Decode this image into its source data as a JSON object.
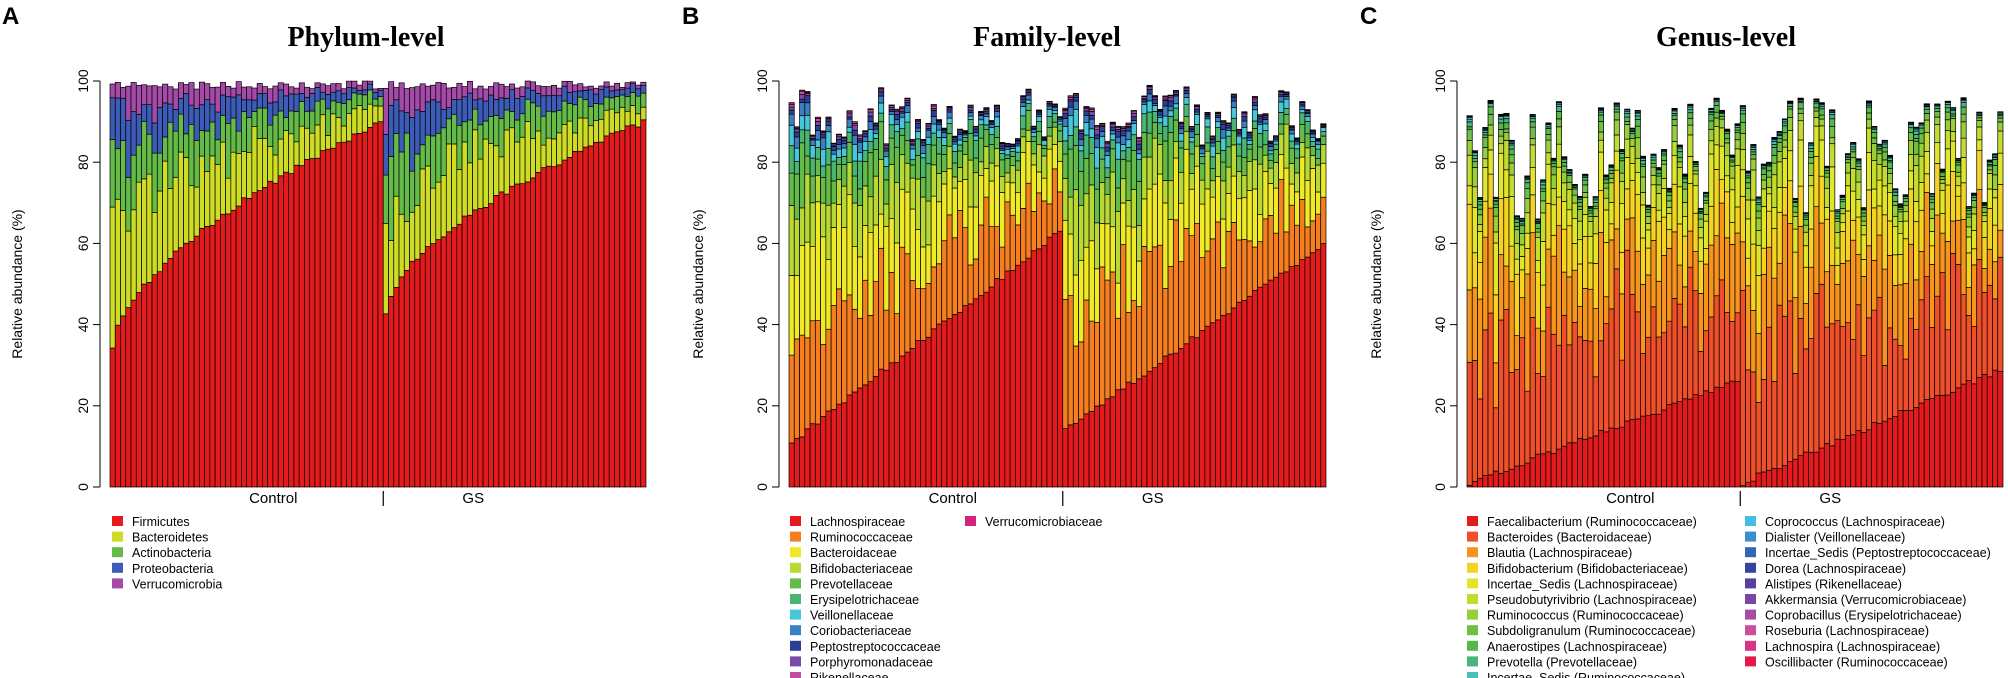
{
  "chart_data": [
    {
      "panel_letter": "A",
      "type": "bar",
      "stacked": true,
      "title": "Phylum-level",
      "ylabel": "Relative abundance (%)",
      "xlabel": "",
      "ylim": [
        0,
        100
      ],
      "yticks": [
        0,
        20,
        40,
        60,
        80,
        100
      ],
      "groups": [
        {
          "name": "Control",
          "n": 52
        },
        {
          "name": "GS",
          "n": 50
        }
      ],
      "bottom_series": {
        "name": "Firmicutes",
        "control_range": [
          34,
          90
        ],
        "gs_range": [
          43,
          90
        ]
      },
      "bar_total_range": [
        98,
        100
      ],
      "legend": {
        "placement": "bottom-left",
        "columns": 1,
        "items": [
          {
            "name": "Firmicutes",
            "color": "#e41a1c"
          },
          {
            "name": "Bacteroidetes",
            "color": "#cfdc25"
          },
          {
            "name": "Actinobacteria",
            "color": "#64bb47"
          },
          {
            "name": "Proteobacteria",
            "color": "#3d5cb8"
          },
          {
            "name": "Verrucomicrobia",
            "color": "#a54aa8"
          }
        ]
      }
    },
    {
      "panel_letter": "B",
      "type": "bar",
      "stacked": true,
      "title": "Family-level",
      "ylabel": "Relative abundance (%)",
      "xlabel": "",
      "ylim": [
        0,
        100
      ],
      "yticks": [
        0,
        20,
        40,
        60,
        80,
        100
      ],
      "groups": [
        {
          "name": "Control",
          "n": 52
        },
        {
          "name": "GS",
          "n": 50
        }
      ],
      "bottom_series": {
        "name": "Lachnospiraceae",
        "control_range": [
          11,
          63
        ],
        "gs_range": [
          14,
          60
        ]
      },
      "bar_total_range": [
        84,
        99
      ],
      "legend": {
        "placement": "bottom-left",
        "columns": 2,
        "items": [
          {
            "name": "Lachnospiraceae",
            "color": "#e41a1c"
          },
          {
            "name": "Ruminococcaceae",
            "color": "#f57f20"
          },
          {
            "name": "Bacteroidaceae",
            "color": "#f0e926"
          },
          {
            "name": "Bifidobacteriaceae",
            "color": "#b8d935"
          },
          {
            "name": "Prevotellaceae",
            "color": "#64bb47"
          },
          {
            "name": "Erysipelotrichaceae",
            "color": "#49b56e"
          },
          {
            "name": "Veillonellaceae",
            "color": "#47c7d8"
          },
          {
            "name": "Coriobacteriaceae",
            "color": "#3b7ec2"
          },
          {
            "name": "Peptostreptococcaceae",
            "color": "#2b3f99"
          },
          {
            "name": "Porphyromonadaceae",
            "color": "#7b4aa8"
          },
          {
            "name": "Rikenellaceae",
            "color": "#c14fa0"
          },
          {
            "name": "Verrucomicrobiaceae",
            "color": "#d4237a"
          }
        ]
      }
    },
    {
      "panel_letter": "C",
      "type": "bar",
      "stacked": true,
      "title": "Genus-level",
      "ylabel": "Relative abundance (%)",
      "xlabel": "",
      "ylim": [
        0,
        100
      ],
      "yticks": [
        0,
        20,
        40,
        60,
        80,
        100
      ],
      "groups": [
        {
          "name": "Control",
          "n": 52
        },
        {
          "name": "GS",
          "n": 50
        }
      ],
      "bottom_series": {
        "name": "Faecalibacterium (Ruminococcaceae)",
        "control_range": [
          1,
          26
        ],
        "gs_range": [
          1,
          29
        ]
      },
      "bar_total_range": [
        66,
        96
      ],
      "legend": {
        "placement": "bottom-left",
        "columns": 2,
        "items": [
          {
            "name": "Faecalibacterium (Ruminococcaceae)",
            "color": "#e41a1c"
          },
          {
            "name": "Bacteroides (Bacteroidaceae)",
            "color": "#ef4f2a"
          },
          {
            "name": "Blautia (Lachnospiraceae)",
            "color": "#f7941d"
          },
          {
            "name": "Bifidobacterium (Bifidobacteriaceae)",
            "color": "#f6d323"
          },
          {
            "name": "Incertae_Sedis (Lachnospiraceae)",
            "color": "#e2e628"
          },
          {
            "name": "Pseudobutyrivibrio (Lachnospiraceae)",
            "color": "#c3dc2f"
          },
          {
            "name": "Ruminococcus (Ruminococcaceae)",
            "color": "#9acd3a"
          },
          {
            "name": "Subdoligranulum (Ruminococcaceae)",
            "color": "#6ebf44"
          },
          {
            "name": "Anaerostipes (Lachnospiraceae)",
            "color": "#55b84a"
          },
          {
            "name": "Prevotella (Prevotellaceae)",
            "color": "#49b57a"
          },
          {
            "name": "Incertae_Sedis (Ruminococcaceae)",
            "color": "#48c0b5"
          },
          {
            "name": "Coprococcus (Lachnospiraceae)",
            "color": "#44bde0"
          },
          {
            "name": "Dialister (Veillonellaceae)",
            "color": "#3a8fd0"
          },
          {
            "name": "Incertae_Sedis (Peptostreptococcaceae)",
            "color": "#3566b5"
          },
          {
            "name": "Dorea (Lachnospiraceae)",
            "color": "#3445a0"
          },
          {
            "name": "Alistipes (Rikenellaceae)",
            "color": "#5b3f9f"
          },
          {
            "name": "Akkermansia (Verrucomicrobiaceae)",
            "color": "#7e45a3"
          },
          {
            "name": "Coprobacillus (Erysipelotrichaceae)",
            "color": "#a44ca6"
          },
          {
            "name": "Roseburia (Lachnospiraceae)",
            "color": "#c94e9f"
          },
          {
            "name": "Lachnospira (Lachnospiraceae)",
            "color": "#d83289"
          },
          {
            "name": "Oscillibacter (Ruminococcaceae)",
            "color": "#e31a4c"
          }
        ]
      }
    }
  ]
}
